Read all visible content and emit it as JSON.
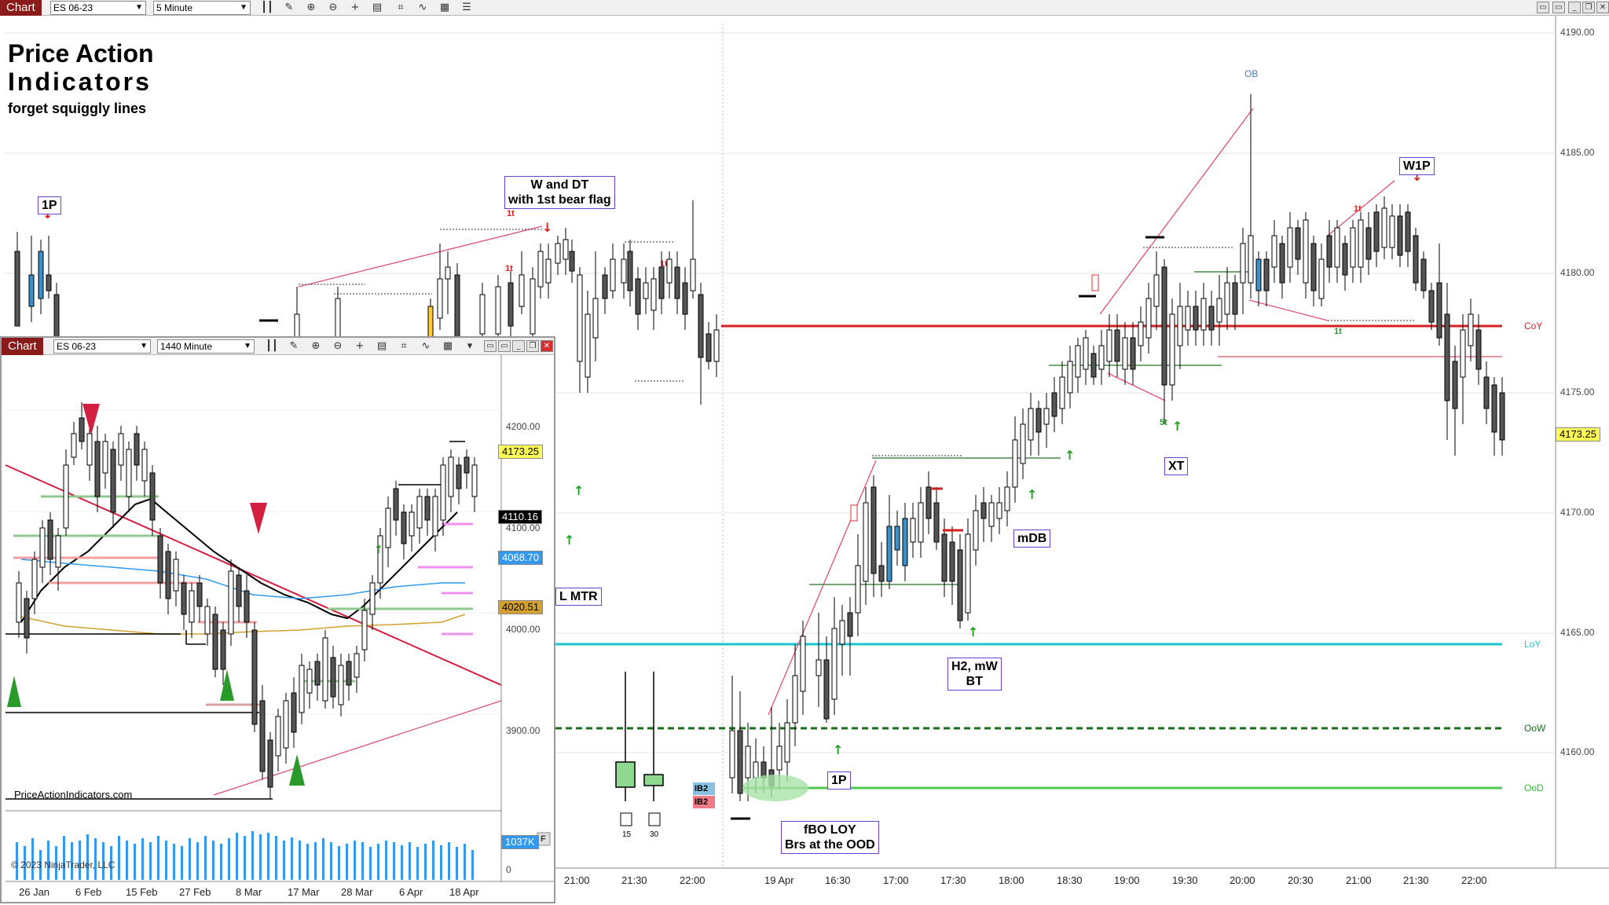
{
  "toolbar": {
    "tab_label": "Chart",
    "instrument": "ES 06-23",
    "interval": "5 Minute",
    "icons": [
      "bar-style-icon",
      "pencil-icon",
      "zoom-in-icon",
      "zoom-out-icon",
      "crosshair-icon",
      "properties-icon",
      "strategy-icon",
      "indicator-icon",
      "data-box-icon",
      "list-icon"
    ]
  },
  "brand": {
    "line1": "Price Action",
    "line2": "Indicators",
    "tagline": "forget squiggly lines"
  },
  "main_chart": {
    "price_axis": [
      "4190.00",
      "4185.00",
      "4180.00",
      "4175.00",
      "4170.00",
      "4165.00",
      "4160.00"
    ],
    "time_axis": [
      "21:00",
      "21:30",
      "22:00",
      "19 Apr",
      "16:30",
      "17:00",
      "17:30",
      "18:00",
      "18:30",
      "19:00",
      "19:30",
      "20:00",
      "20:30",
      "21:00",
      "21:30",
      "22:00"
    ],
    "current_price": "4173.25",
    "levels": [
      {
        "name": "CoY",
        "color": "#d42020"
      },
      {
        "name": "LoY",
        "color": "#18c6d0"
      },
      {
        "name": "OoW",
        "color": "#1a6e1a"
      },
      {
        "name": "OoD",
        "color": "#2ec02e"
      },
      {
        "name": "OB",
        "color": "#4a7cc0"
      }
    ],
    "annotations": {
      "p1_left": "1P",
      "w_dt": "W and DT\nwith 1st bear flag",
      "mtr": "L MTR",
      "fbo": "fBO LOY\nBrs at the OOD",
      "p1_mid": "1P",
      "h2": "H2, mW\nBT",
      "mdb": "mDB",
      "xt": "XT",
      "w1p": "W1P"
    },
    "small_marks": {
      "one_t": "1t",
      "five_t": "5t",
      "ib2": "IB2",
      "box15": "15",
      "box30": "30"
    }
  },
  "inset": {
    "tab_label": "Chart",
    "instrument": "ES 06-23",
    "interval": "1440 Minute",
    "price_axis": [
      "4200.00",
      "4100.00",
      "4000.00",
      "3900.00"
    ],
    "price_tags": [
      {
        "value": "4173.25",
        "bg": "#ffff55",
        "fg": "#000"
      },
      {
        "value": "4110.16",
        "bg": "#000000",
        "fg": "#fff"
      },
      {
        "value": "4068.70",
        "bg": "#3399ee",
        "fg": "#fff"
      },
      {
        "value": "4020.51",
        "bg": "#d4a030",
        "fg": "#000"
      }
    ],
    "time_axis": [
      "26 Jan",
      "6 Feb",
      "15 Feb",
      "27 Feb",
      "8 Mar",
      "17 Mar",
      "28 Mar",
      "6 Apr",
      "18 Apr"
    ],
    "website": "PriceActionIndicators.com",
    "volume_axis": "0",
    "volume_tag": "1037K",
    "copyright": "© 2023 NinjaTrader, LLC",
    "f_button": "F"
  }
}
